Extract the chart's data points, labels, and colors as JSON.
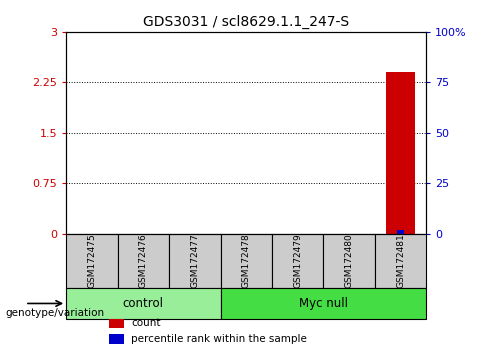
{
  "title": "GDS3031 / scl8629.1.1_247-S",
  "samples": [
    "GSM172475",
    "GSM172476",
    "GSM172477",
    "GSM172478",
    "GSM172479",
    "GSM172480",
    "GSM172481"
  ],
  "bar_values": [
    0.0,
    0.0,
    0.0,
    0.0,
    0.0,
    0.0,
    2.4
  ],
  "percentile_values": [
    0.0,
    0.0,
    0.0,
    0.0,
    0.0,
    0.0,
    2.0
  ],
  "bar_color": "#cc0000",
  "percentile_color": "#0000cc",
  "ylim_left": [
    0,
    3
  ],
  "ylim_right": [
    0,
    100
  ],
  "yticks_left": [
    0,
    0.75,
    1.5,
    2.25,
    3
  ],
  "yticks_right": [
    0,
    25,
    50,
    75,
    100
  ],
  "ytick_labels_left": [
    "0",
    "0.75",
    "1.5",
    "2.25",
    "3"
  ],
  "ytick_labels_right": [
    "0",
    "25",
    "50",
    "75",
    "100%"
  ],
  "left_tick_color": "#cc0000",
  "right_tick_color": "#0000cc",
  "groups": [
    {
      "label": "control",
      "start": 0,
      "end": 3,
      "color": "#99ee99"
    },
    {
      "label": "Myc null",
      "start": 3,
      "end": 7,
      "color": "#44dd44"
    }
  ],
  "group_row_label": "genotype/variation",
  "legend_items": [
    {
      "label": "count",
      "color": "#cc0000"
    },
    {
      "label": "percentile rank within the sample",
      "color": "#0000cc"
    }
  ],
  "bar_width": 0.55,
  "percentile_bar_width": 0.12,
  "sample_box_color": "#cccccc",
  "background_color": "#ffffff",
  "grid_color": "#000000",
  "title_fontsize": 10
}
